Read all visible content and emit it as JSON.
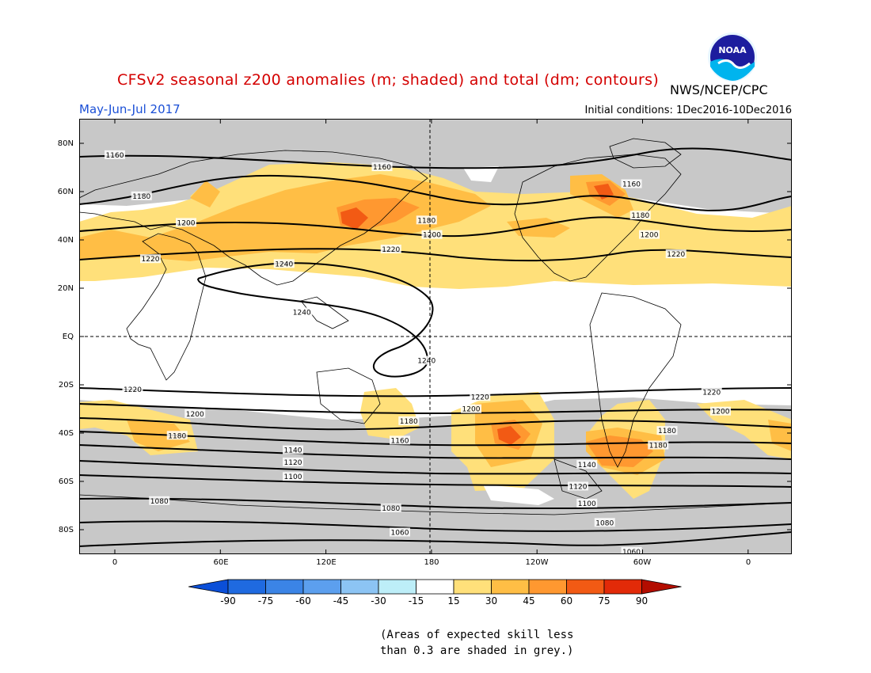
{
  "header": {
    "title": "CFSv2 seasonal z200 anomalies (m; shaded) and total (dm; contours)",
    "agency": "NWS/NCEP/CPC",
    "period": "May-Jun-Jul 2017",
    "initial_conditions": "Initial conditions: 1Dec2016-10Dec2016",
    "logo_text": "NOAA"
  },
  "map": {
    "projection": "equirectangular",
    "lon_range_deg": [
      -20,
      380
    ],
    "lat_range_deg": [
      -90,
      90
    ],
    "lat_labels": [
      "80N",
      "60N",
      "40N",
      "20N",
      "EQ",
      "20S",
      "40S",
      "60S",
      "80S"
    ],
    "lon_labels": [
      "0",
      "60E",
      "120E",
      "180",
      "120W",
      "60W",
      "0"
    ],
    "contour_labels_dm": [
      {
        "text": "1160",
        "lon": 0,
        "lat": 75
      },
      {
        "text": "1160",
        "lon": 150,
        "lat": 70
      },
      {
        "text": "1160",
        "lon": 290,
        "lat": 63
      },
      {
        "text": "1180",
        "lon": 15,
        "lat": 58
      },
      {
        "text": "1180",
        "lon": 175,
        "lat": 48
      },
      {
        "text": "1180",
        "lon": 295,
        "lat": 50
      },
      {
        "text": "1200",
        "lon": 40,
        "lat": 47
      },
      {
        "text": "1200",
        "lon": 178,
        "lat": 42
      },
      {
        "text": "1200",
        "lon": 300,
        "lat": 42
      },
      {
        "text": "1220",
        "lon": 20,
        "lat": 32
      },
      {
        "text": "1220",
        "lon": 155,
        "lat": 36
      },
      {
        "text": "1220",
        "lon": 315,
        "lat": 34
      },
      {
        "text": "1240",
        "lon": 95,
        "lat": 30
      },
      {
        "text": "1240",
        "lon": 105,
        "lat": 10
      },
      {
        "text": "1240",
        "lon": 175,
        "lat": -10
      },
      {
        "text": "1220",
        "lon": 10,
        "lat": -22
      },
      {
        "text": "1220",
        "lon": 205,
        "lat": -25
      },
      {
        "text": "1220",
        "lon": 335,
        "lat": -23
      },
      {
        "text": "1200",
        "lon": 45,
        "lat": -32
      },
      {
        "text": "1200",
        "lon": 200,
        "lat": -30
      },
      {
        "text": "1200",
        "lon": 340,
        "lat": -31
      },
      {
        "text": "1180",
        "lon": 35,
        "lat": -41
      },
      {
        "text": "1180",
        "lon": 165,
        "lat": -35
      },
      {
        "text": "1180",
        "lon": 310,
        "lat": -39
      },
      {
        "text": "1180",
        "lon": 305,
        "lat": -45
      },
      {
        "text": "1160",
        "lon": 160,
        "lat": -43
      },
      {
        "text": "1140",
        "lon": 100,
        "lat": -47
      },
      {
        "text": "1140",
        "lon": 265,
        "lat": -53
      },
      {
        "text": "1120",
        "lon": 100,
        "lat": -52
      },
      {
        "text": "1120",
        "lon": 260,
        "lat": -62
      },
      {
        "text": "1100",
        "lon": 100,
        "lat": -58
      },
      {
        "text": "1100",
        "lon": 265,
        "lat": -69
      },
      {
        "text": "1080",
        "lon": 25,
        "lat": -68
      },
      {
        "text": "1080",
        "lon": 155,
        "lat": -71
      },
      {
        "text": "1080",
        "lon": 275,
        "lat": -77
      },
      {
        "text": "1060",
        "lon": 160,
        "lat": -81
      },
      {
        "text": "1060",
        "lon": 290,
        "lat": -89
      }
    ]
  },
  "colorbar": {
    "labels": [
      "-90",
      "-75",
      "-60",
      "-45",
      "-30",
      "-15",
      "15",
      "30",
      "45",
      "60",
      "75",
      "90"
    ],
    "colors": [
      "#0b4fd8",
      "#1f6ae0",
      "#3b84e6",
      "#5c9fee",
      "#8cc4f4",
      "#bdeef8",
      "#ffffff",
      "#ffe07a",
      "#ffbe45",
      "#ff9830",
      "#f25a14",
      "#e22a08",
      "#b30d00"
    ]
  },
  "note": {
    "line1": "(Areas of expected skill less",
    "line2": "than 0.3 are shaded in grey.)"
  }
}
